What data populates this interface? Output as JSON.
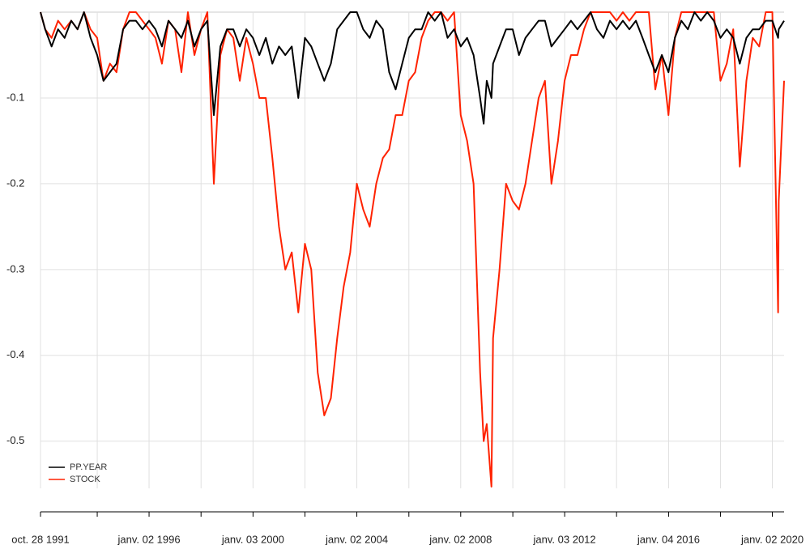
{
  "chart_data": {
    "type": "line",
    "x": [
      "1991-10-28",
      "1992-01-02",
      "1992-04-01",
      "1992-07-01",
      "1992-10-01",
      "1993-01-02",
      "1993-04-01",
      "1993-07-01",
      "1993-10-01",
      "1994-01-02",
      "1994-04-01",
      "1994-07-01",
      "1994-10-01",
      "1995-01-02",
      "1995-04-01",
      "1995-07-01",
      "1995-10-01",
      "1996-01-02",
      "1996-04-01",
      "1996-07-01",
      "1996-10-01",
      "1997-01-02",
      "1997-04-01",
      "1997-07-01",
      "1997-10-01",
      "1998-01-02",
      "1998-04-01",
      "1998-07-01",
      "1998-10-01",
      "1999-01-02",
      "1999-04-01",
      "1999-07-01",
      "1999-10-01",
      "2000-01-02",
      "2000-04-01",
      "2000-07-01",
      "2000-10-01",
      "2001-01-02",
      "2001-04-01",
      "2001-07-01",
      "2001-10-01",
      "2002-01-02",
      "2002-04-01",
      "2002-07-01",
      "2002-10-01",
      "2003-01-02",
      "2003-04-01",
      "2003-07-01",
      "2003-10-01",
      "2004-01-02",
      "2004-04-01",
      "2004-07-01",
      "2004-10-01",
      "2005-01-02",
      "2005-04-01",
      "2005-07-01",
      "2005-10-01",
      "2006-01-02",
      "2006-04-01",
      "2006-07-01",
      "2006-10-01",
      "2007-01-02",
      "2007-04-01",
      "2007-07-01",
      "2007-10-01",
      "2008-01-02",
      "2008-04-01",
      "2008-07-01",
      "2008-10-01",
      "2008-11-20",
      "2009-01-02",
      "2009-03-09",
      "2009-04-01",
      "2009-07-01",
      "2009-10-01",
      "2010-01-02",
      "2010-04-01",
      "2010-07-01",
      "2010-10-01",
      "2011-01-02",
      "2011-04-01",
      "2011-07-01",
      "2011-10-01",
      "2012-01-02",
      "2012-04-01",
      "2012-07-01",
      "2012-10-01",
      "2013-01-02",
      "2013-04-01",
      "2013-07-01",
      "2013-10-01",
      "2014-01-02",
      "2014-04-01",
      "2014-07-01",
      "2014-10-01",
      "2015-01-02",
      "2015-04-01",
      "2015-07-01",
      "2015-10-01",
      "2016-01-02",
      "2016-04-01",
      "2016-07-01",
      "2016-10-01",
      "2017-01-02",
      "2017-04-01",
      "2017-07-01",
      "2017-10-01",
      "2018-01-02",
      "2018-04-01",
      "2018-07-01",
      "2018-10-01",
      "2019-01-02",
      "2019-04-01",
      "2019-07-01",
      "2019-10-01",
      "2020-01-02",
      "2020-03-23",
      "2020-04-01",
      "2020-06-15"
    ],
    "series": [
      {
        "name": "PP.YEAR",
        "color": "#000000",
        "values": [
          0,
          -0.02,
          -0.04,
          -0.02,
          -0.03,
          -0.01,
          -0.02,
          0,
          -0.03,
          -0.05,
          -0.08,
          -0.07,
          -0.06,
          -0.02,
          -0.01,
          -0.01,
          -0.02,
          -0.01,
          -0.02,
          -0.04,
          -0.01,
          -0.02,
          -0.03,
          -0.01,
          -0.04,
          -0.02,
          -0.01,
          -0.12,
          -0.04,
          -0.02,
          -0.02,
          -0.04,
          -0.02,
          -0.03,
          -0.05,
          -0.03,
          -0.06,
          -0.04,
          -0.05,
          -0.04,
          -0.1,
          -0.03,
          -0.04,
          -0.06,
          -0.08,
          -0.06,
          -0.02,
          -0.01,
          0,
          0,
          -0.02,
          -0.03,
          -0.01,
          -0.02,
          -0.07,
          -0.09,
          -0.06,
          -0.03,
          -0.02,
          -0.02,
          0,
          -0.01,
          0,
          -0.03,
          -0.02,
          -0.04,
          -0.03,
          -0.05,
          -0.1,
          -0.13,
          -0.08,
          -0.1,
          -0.06,
          -0.04,
          -0.02,
          -0.02,
          -0.05,
          -0.03,
          -0.02,
          -0.01,
          -0.01,
          -0.04,
          -0.03,
          -0.02,
          -0.01,
          -0.02,
          -0.01,
          0,
          -0.02,
          -0.03,
          -0.01,
          -0.02,
          -0.01,
          -0.02,
          -0.01,
          -0.03,
          -0.05,
          -0.07,
          -0.05,
          -0.07,
          -0.03,
          -0.01,
          -0.02,
          0,
          -0.01,
          0,
          -0.01,
          -0.03,
          -0.02,
          -0.03,
          -0.06,
          -0.03,
          -0.02,
          -0.02,
          -0.01,
          -0.01,
          -0.03,
          -0.02,
          -0.01
        ]
      },
      {
        "name": "STOCK",
        "color": "#ff2200",
        "values": [
          0,
          -0.02,
          -0.03,
          -0.01,
          -0.02,
          -0.01,
          -0.02,
          0,
          -0.02,
          -0.03,
          -0.08,
          -0.06,
          -0.07,
          -0.02,
          0,
          0,
          -0.01,
          -0.02,
          -0.03,
          -0.06,
          -0.01,
          -0.02,
          -0.07,
          0,
          -0.05,
          -0.02,
          0,
          -0.2,
          -0.05,
          -0.02,
          -0.03,
          -0.08,
          -0.03,
          -0.06,
          -0.1,
          -0.1,
          -0.17,
          -0.25,
          -0.3,
          -0.28,
          -0.35,
          -0.27,
          -0.3,
          -0.42,
          -0.47,
          -0.45,
          -0.38,
          -0.32,
          -0.28,
          -0.2,
          -0.23,
          -0.25,
          -0.2,
          -0.17,
          -0.16,
          -0.12,
          -0.12,
          -0.08,
          -0.07,
          -0.03,
          -0.01,
          0,
          0,
          -0.01,
          0,
          -0.12,
          -0.15,
          -0.2,
          -0.42,
          -0.5,
          -0.48,
          -0.553,
          -0.38,
          -0.3,
          -0.2,
          -0.22,
          -0.23,
          -0.2,
          -0.15,
          -0.1,
          -0.08,
          -0.2,
          -0.15,
          -0.08,
          -0.05,
          -0.05,
          -0.02,
          0,
          0,
          0,
          0,
          -0.01,
          0,
          -0.01,
          0,
          0,
          0,
          -0.09,
          -0.05,
          -0.12,
          -0.03,
          0,
          0,
          0,
          0,
          0,
          0,
          -0.08,
          -0.06,
          -0.02,
          -0.18,
          -0.08,
          -0.03,
          -0.04,
          0,
          0,
          -0.35,
          -0.22,
          -0.08
        ]
      }
    ],
    "xlim": [
      "1991-10-28",
      "2020-06-15"
    ],
    "xticks": [
      {
        "value": "1991-10-28",
        "label": "oct. 28 1991"
      },
      {
        "value": "1994-01-03",
        "label": null
      },
      {
        "value": "1996-01-02",
        "label": "janv. 02 1996"
      },
      {
        "value": "1998-01-02",
        "label": null
      },
      {
        "value": "2000-01-03",
        "label": "janv. 03 2000"
      },
      {
        "value": "2002-01-02",
        "label": null
      },
      {
        "value": "2004-01-02",
        "label": "janv. 02 2004"
      },
      {
        "value": "2006-01-03",
        "label": null
      },
      {
        "value": "2008-01-02",
        "label": "janv. 02 2008"
      },
      {
        "value": "2010-01-04",
        "label": null
      },
      {
        "value": "2012-01-03",
        "label": "janv. 03 2012"
      },
      {
        "value": "2014-01-02",
        "label": null
      },
      {
        "value": "2016-01-04",
        "label": "janv. 04 2016"
      },
      {
        "value": "2018-01-02",
        "label": null
      },
      {
        "value": "2020-01-02",
        "label": "janv. 02 2020"
      }
    ],
    "ylim": [
      -0.555,
      0
    ],
    "yticks": [
      -0.1,
      -0.2,
      -0.3,
      -0.4,
      -0.5
    ],
    "grid": true,
    "legend": "bottom-left"
  }
}
